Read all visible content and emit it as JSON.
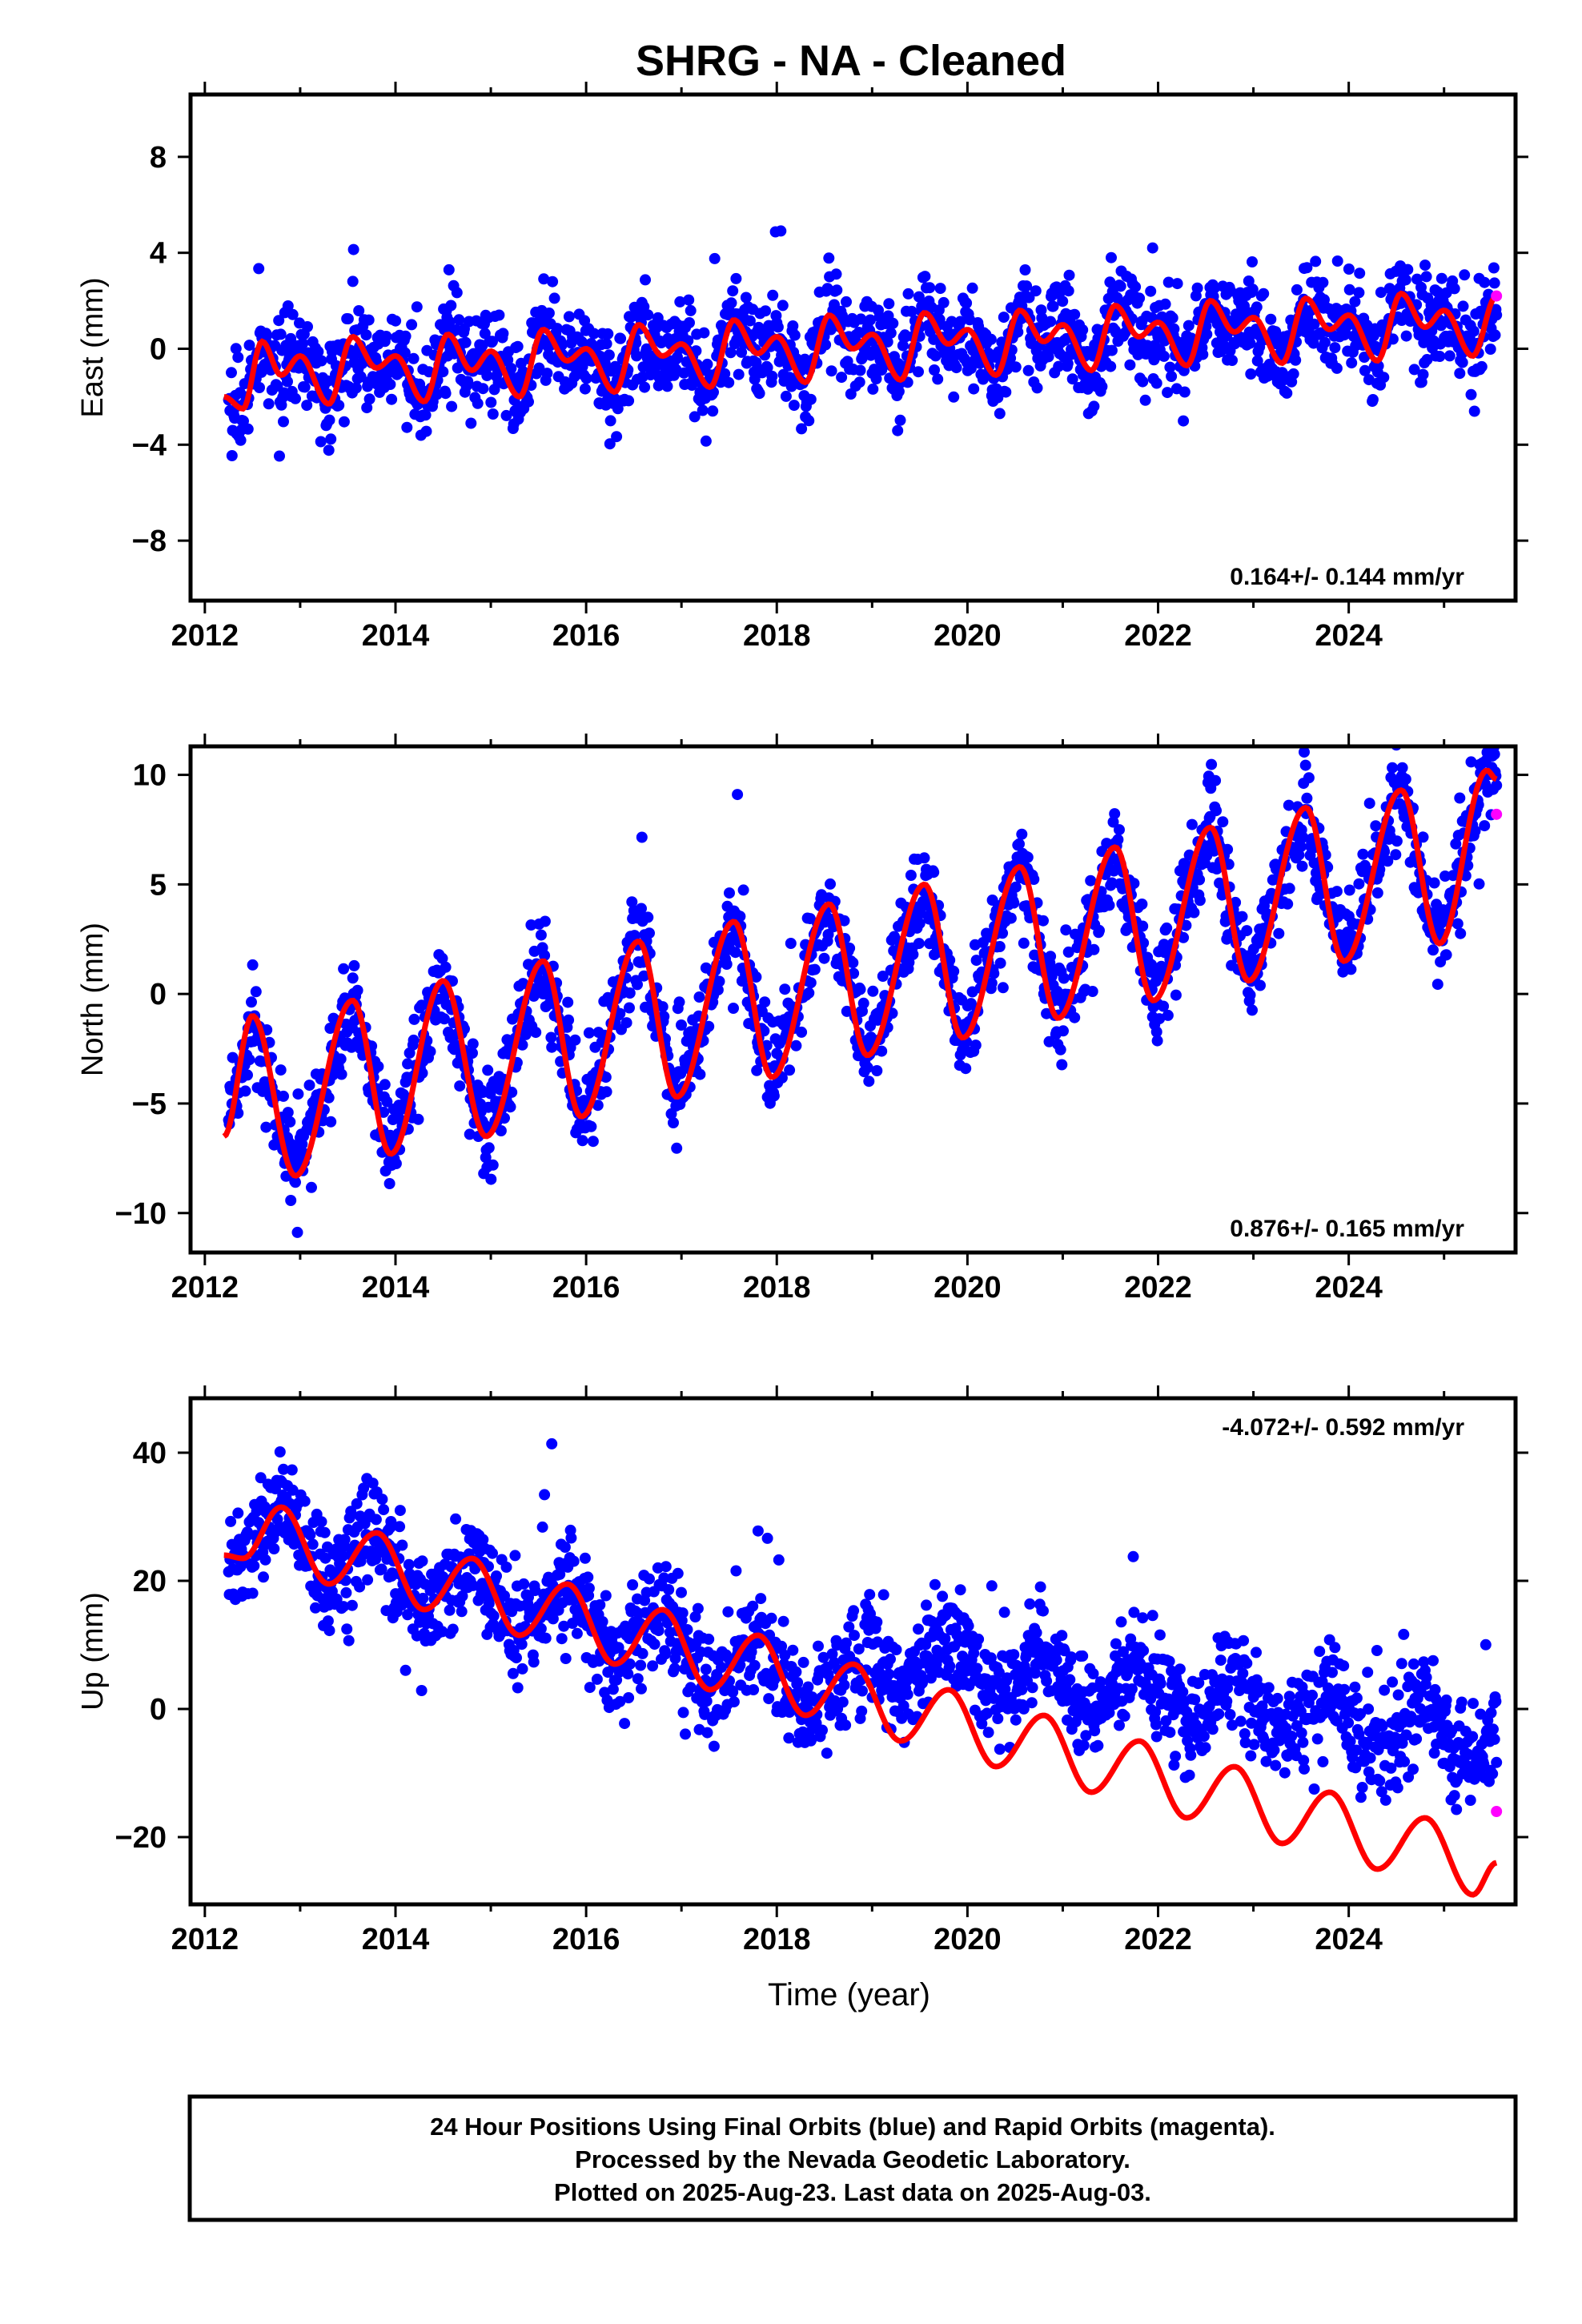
{
  "title": "SHRG  - NA - Cleaned",
  "colors": {
    "final_orbits": "#0000ff",
    "rapid_orbits": "#ff00ff",
    "model": "#ff0000",
    "frame": "#000000"
  },
  "caption": {
    "line1": "24 Hour Positions Using Final Orbits (blue) and Rapid Orbits (magenta).",
    "line2": "Processed by the Nevada Geodetic Laboratory.",
    "line3": "Plotted on 2025-Aug-23. Last data on 2025-Aug-03."
  },
  "chart_data": [
    {
      "type": "scatter",
      "component": "East",
      "ylabel": "East (mm)",
      "xlabel": "",
      "xlim": [
        2011.85,
        2025.75
      ],
      "ylim": [
        -10.5,
        10.6
      ],
      "xticks": [
        2012,
        2014,
        2016,
        2018,
        2020,
        2022,
        2024
      ],
      "xtick_labels": [
        "2012",
        "2014",
        "2016",
        "2018",
        "2020",
        "2022",
        "2024"
      ],
      "yticks": [
        -8,
        -4,
        0,
        4,
        8
      ],
      "ytick_labels": [
        "−8",
        "−4",
        "0",
        "4",
        "8"
      ],
      "rate_label": "0.164+/- 0.144 mm/yr",
      "rate_position": "bottom-right",
      "data_span": [
        2012.25,
        2025.55
      ],
      "approx_trend": {
        "intercept_2012": -1.9,
        "rate": 0.164,
        "annual_amp": 1.2,
        "semiannual_amp": 0.4,
        "scatter": 1.0
      },
      "model_curve": {
        "x": [
          2012.2,
          2012.4,
          2012.6,
          2012.8,
          2013.0,
          2013.3,
          2013.55,
          2013.8,
          2014.0,
          2014.3,
          2014.55,
          2014.8,
          2015.0,
          2015.3,
          2015.55,
          2015.8,
          2016.0,
          2016.3,
          2016.55,
          2016.8,
          2017.0,
          2017.3,
          2017.55,
          2017.8,
          2018.0,
          2018.3,
          2018.55,
          2018.8,
          2019.0,
          2019.3,
          2019.55,
          2019.8,
          2020.0,
          2020.3,
          2020.55,
          2020.8,
          2021.0,
          2021.3,
          2021.55,
          2021.8,
          2022.0,
          2022.3,
          2022.55,
          2022.8,
          2023.0,
          2023.3,
          2023.55,
          2023.8,
          2024.0,
          2024.3,
          2024.55,
          2024.8,
          2025.0,
          2025.3,
          2025.55
        ],
        "y": [
          -2.0,
          -2.5,
          0.3,
          -1.1,
          -0.3,
          -2.3,
          0.5,
          -0.8,
          -0.3,
          -2.2,
          0.6,
          -0.9,
          -0.1,
          -2.0,
          0.8,
          -0.5,
          0.0,
          -1.8,
          1.0,
          -0.3,
          0.2,
          -1.6,
          1.2,
          -0.2,
          0.5,
          -1.4,
          1.4,
          0.0,
          0.6,
          -1.3,
          1.5,
          0.2,
          0.8,
          -1.1,
          1.6,
          0.3,
          1.0,
          -0.9,
          1.8,
          0.5,
          1.1,
          -0.7,
          2.0,
          0.7,
          1.3,
          -0.6,
          2.1,
          0.8,
          1.4,
          -0.5,
          2.3,
          0.9,
          1.6,
          -0.3,
          2.2
        ]
      },
      "final_orbits_label": "final orbits",
      "rapid_orbits": {
        "x": [
          2025.55
        ],
        "y": [
          2.2
        ]
      }
    },
    {
      "type": "scatter",
      "component": "North",
      "ylabel": "North (mm)",
      "xlabel": "",
      "xlim": [
        2011.85,
        2025.75
      ],
      "ylim": [
        -11.8,
        11.3
      ],
      "xticks": [
        2012,
        2014,
        2016,
        2018,
        2020,
        2022,
        2024
      ],
      "xtick_labels": [
        "2012",
        "2014",
        "2016",
        "2018",
        "2020",
        "2022",
        "2024"
      ],
      "yticks": [
        -10,
        -5,
        0,
        5,
        10
      ],
      "ytick_labels": [
        "−10",
        "−5",
        "0",
        "5",
        "10"
      ],
      "rate_label": "0.876+/- 0.165 mm/yr",
      "rate_position": "bottom-right",
      "data_span": [
        2012.25,
        2025.55
      ],
      "approx_trend": {
        "intercept_2012": -4.8,
        "rate": 0.876,
        "annual_amp": 3.5,
        "semiannual_amp": 0.5,
        "scatter": 1.1
      },
      "model_curve": {
        "x": [
          2012.2,
          2012.5,
          2012.95,
          2013.55,
          2013.95,
          2014.5,
          2014.95,
          2015.55,
          2015.95,
          2016.55,
          2016.95,
          2017.55,
          2017.95,
          2018.55,
          2018.95,
          2019.55,
          2019.95,
          2020.55,
          2020.95,
          2021.55,
          2021.95,
          2022.55,
          2022.95,
          2023.55,
          2023.95,
          2024.55,
          2024.95,
          2025.45,
          2025.55
        ],
        "y": [
          -6.5,
          -1.0,
          -8.3,
          -0.3,
          -7.3,
          0.6,
          -6.5,
          1.5,
          -5.6,
          2.4,
          -4.7,
          3.3,
          -3.8,
          4.1,
          -2.8,
          5.0,
          -2.0,
          5.8,
          -1.1,
          6.7,
          -0.3,
          7.6,
          0.6,
          8.5,
          1.5,
          9.3,
          2.3,
          10.2,
          9.8
        ]
      },
      "final_orbits_label": "final orbits",
      "rapid_orbits": {
        "x": [
          2025.55
        ],
        "y": [
          8.2
        ]
      }
    },
    {
      "type": "scatter",
      "component": "Up",
      "ylabel": "Up (mm)",
      "xlabel": "Time (year)",
      "xlim": [
        2011.85,
        2025.75
      ],
      "ylim": [
        -30.5,
        48.5
      ],
      "xticks": [
        2012,
        2014,
        2016,
        2018,
        2020,
        2022,
        2024
      ],
      "xtick_labels": [
        "2012",
        "2014",
        "2016",
        "2018",
        "2020",
        "2022",
        "2024"
      ],
      "yticks": [
        -20,
        0,
        20,
        40
      ],
      "ytick_labels": [
        "−20",
        "0",
        "20",
        "40"
      ],
      "rate_label": "-4.072+/- 0.592 mm/yr",
      "rate_position": "top-right",
      "data_span": [
        2012.25,
        2025.55
      ],
      "approx_trend": {
        "intercept_2012": 28.5,
        "rate": -4.072,
        "annual_amp": 4.5,
        "semiannual_amp": 0.5,
        "scatter": 4.0
      },
      "model_curve": {
        "x": [
          2012.2,
          2012.4,
          2012.8,
          2013.3,
          2013.8,
          2014.3,
          2014.8,
          2015.3,
          2015.8,
          2016.3,
          2016.8,
          2017.3,
          2017.8,
          2018.3,
          2018.8,
          2019.3,
          2019.8,
          2020.3,
          2020.8,
          2021.3,
          2021.8,
          2022.3,
          2022.8,
          2023.3,
          2023.8,
          2024.3,
          2024.8,
          2025.3,
          2025.55
        ],
        "y": [
          24.0,
          23.5,
          31.5,
          19.5,
          27.5,
          15.5,
          23.5,
          11.5,
          19.5,
          7.0,
          15.5,
          3.0,
          11.5,
          -1.0,
          7.0,
          -5.0,
          3.0,
          -9.0,
          -1.0,
          -13.0,
          -5.0,
          -17.0,
          -9.0,
          -21.0,
          -13.0,
          -25.0,
          -17.0,
          -29.0,
          -24.0
        ]
      },
      "final_orbits_label": "final orbits",
      "rapid_orbits": {
        "x": [
          2025.55
        ],
        "y": [
          -16.0
        ]
      }
    }
  ]
}
